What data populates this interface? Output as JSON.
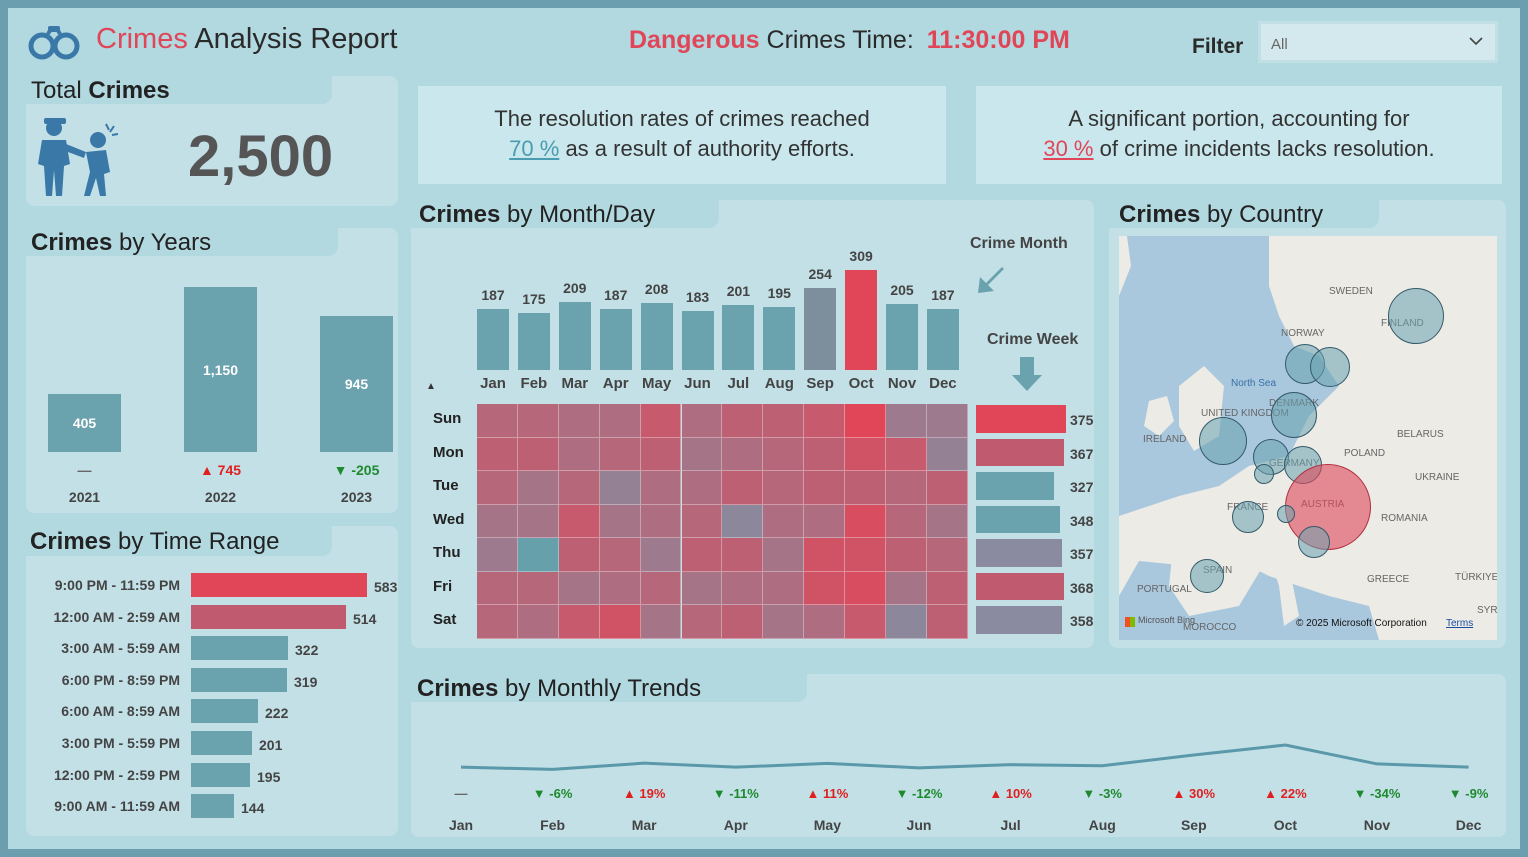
{
  "header": {
    "title_red": "Crimes",
    "title_rest": "Analysis Report",
    "danger_red": "Dangerous",
    "danger_rest": "Crimes Time:",
    "danger_time": "11:30:00 PM",
    "filter_label": "Filter",
    "filter_value": "All"
  },
  "total": {
    "title_a": "Total",
    "title_b": "Crimes",
    "value": "2,500"
  },
  "notes": [
    {
      "line1": "The resolution rates of crimes reached",
      "pct": "70 %",
      "line2": "as a result of authority efforts.",
      "pct_color": "#4a9db0"
    },
    {
      "line1": "A significant portion, accounting for",
      "pct": "30 %",
      "line2": "of crime incidents lacks resolution.",
      "pct_color": "#e04658"
    }
  ],
  "years": {
    "title_a": "Crimes",
    "title_b": "by Years",
    "items": [
      {
        "year": "2021",
        "value": 405,
        "label": "405",
        "delta": "—",
        "dir": "none"
      },
      {
        "year": "2022",
        "value": 1150,
        "label": "1,150",
        "delta": "▲ 745",
        "dir": "up"
      },
      {
        "year": "2023",
        "value": 945,
        "label": "945",
        "delta": "▼ -205",
        "dir": "down"
      }
    ]
  },
  "time_range": {
    "title_a": "Crimes",
    "title_b": "by Time Range",
    "items": [
      {
        "label": "9:00 PM - 11:59 PM",
        "value": 583
      },
      {
        "label": "12:00 AM - 2:59 AM",
        "value": 514
      },
      {
        "label": "3:00 AM - 5:59 AM",
        "value": 322
      },
      {
        "label": "6:00 PM - 8:59 PM",
        "value": 319
      },
      {
        "label": "6:00 AM - 8:59 AM",
        "value": 222
      },
      {
        "label": "3:00 PM - 5:59 PM",
        "value": 201
      },
      {
        "label": "12:00 PM - 2:59 PM",
        "value": 195
      },
      {
        "label": "9:00 AM - 11:59 AM",
        "value": 144
      }
    ]
  },
  "month_day": {
    "title_a": "Crimes",
    "title_b": "by Month/Day",
    "crime_month_label": "Crime Month",
    "crime_week_label": "Crime Week",
    "months": [
      {
        "m": "Jan",
        "v": 187
      },
      {
        "m": "Feb",
        "v": 175
      },
      {
        "m": "Mar",
        "v": 209
      },
      {
        "m": "Apr",
        "v": 187
      },
      {
        "m": "May",
        "v": 208
      },
      {
        "m": "Jun",
        "v": 183
      },
      {
        "m": "Jul",
        "v": 201
      },
      {
        "m": "Aug",
        "v": 195
      },
      {
        "m": "Sep",
        "v": 254
      },
      {
        "m": "Oct",
        "v": 309
      },
      {
        "m": "Nov",
        "v": 205
      },
      {
        "m": "Dec",
        "v": 187
      }
    ],
    "days": [
      {
        "d": "Sun",
        "v": 375
      },
      {
        "d": "Mon",
        "v": 367
      },
      {
        "d": "Tue",
        "v": 327
      },
      {
        "d": "Wed",
        "v": 348
      },
      {
        "d": "Thu",
        "v": 357
      },
      {
        "d": "Fri",
        "v": 368
      },
      {
        "d": "Sat",
        "v": 358
      }
    ],
    "heat": [
      [
        0.5,
        0.5,
        0.4,
        0.4,
        0.7,
        0.4,
        0.6,
        0.6,
        0.7,
        1.0,
        0.2,
        0.2
      ],
      [
        0.6,
        0.6,
        0.4,
        0.5,
        0.6,
        0.3,
        0.4,
        0.5,
        0.6,
        0.8,
        0.7,
        0.1
      ],
      [
        0.5,
        0.3,
        0.5,
        0.1,
        0.4,
        0.4,
        0.6,
        0.5,
        0.6,
        0.6,
        0.5,
        0.6
      ],
      [
        0.3,
        0.3,
        0.7,
        0.3,
        0.4,
        0.5,
        0.0,
        0.4,
        0.4,
        0.9,
        0.5,
        0.3
      ],
      [
        0.2,
        -0.3,
        0.6,
        0.5,
        0.2,
        0.6,
        0.6,
        0.3,
        0.8,
        0.8,
        0.6,
        0.5
      ],
      [
        0.5,
        0.5,
        0.3,
        0.4,
        0.5,
        0.3,
        0.4,
        0.4,
        0.8,
        0.9,
        0.3,
        0.6
      ],
      [
        0.5,
        0.4,
        0.7,
        0.8,
        0.3,
        0.5,
        0.6,
        0.3,
        0.4,
        0.7,
        0.0,
        0.6
      ]
    ]
  },
  "country": {
    "title_a": "Crimes",
    "title_b": "by Country",
    "labels": [
      "SWEDEN",
      "FINLAND",
      "NORWAY",
      "North Sea",
      "DENMARK",
      "UNITED KINGDOM",
      "IRELAND",
      "BELARUS",
      "POLAND",
      "GERMANY",
      "UKRAINE",
      "FRANCE",
      "AUSTRIA",
      "ROMANIA",
      "SPAIN",
      "PORTUGAL",
      "GREECE",
      "TÜRKIYE",
      "MOROCCO",
      "SYRI"
    ],
    "attribution_left": "Microsoft Bing",
    "attribution_right": "© 2025 Microsoft Corporation",
    "terms": "Terms"
  },
  "trends": {
    "title_a": "Crimes",
    "title_b": "by Monthly Trends",
    "months": [
      "Jan",
      "Feb",
      "Mar",
      "Apr",
      "May",
      "Jun",
      "Jul",
      "Aug",
      "Sep",
      "Oct",
      "Nov",
      "Dec"
    ],
    "values": [
      187,
      175,
      209,
      187,
      208,
      183,
      201,
      195,
      254,
      309,
      205,
      187
    ],
    "deltas": [
      {
        "t": "—",
        "dir": "none"
      },
      {
        "t": "▼ -6%",
        "dir": "down"
      },
      {
        "t": "▲ 19%",
        "dir": "up"
      },
      {
        "t": "▼ -11%",
        "dir": "down"
      },
      {
        "t": "▲ 11%",
        "dir": "up"
      },
      {
        "t": "▼ -12%",
        "dir": "down"
      },
      {
        "t": "▲ 10%",
        "dir": "up"
      },
      {
        "t": "▼ -3%",
        "dir": "down"
      },
      {
        "t": "▲ 30%",
        "dir": "up"
      },
      {
        "t": "▲ 22%",
        "dir": "up"
      },
      {
        "t": "▼ -34%",
        "dir": "down"
      },
      {
        "t": "▼ -9%",
        "dir": "down"
      }
    ]
  },
  "colors": {
    "teal": "#6aa2ae",
    "red": "#e04658",
    "green": "#1e8a2e",
    "up": "#e02020",
    "gray": "#7d8e9c"
  }
}
